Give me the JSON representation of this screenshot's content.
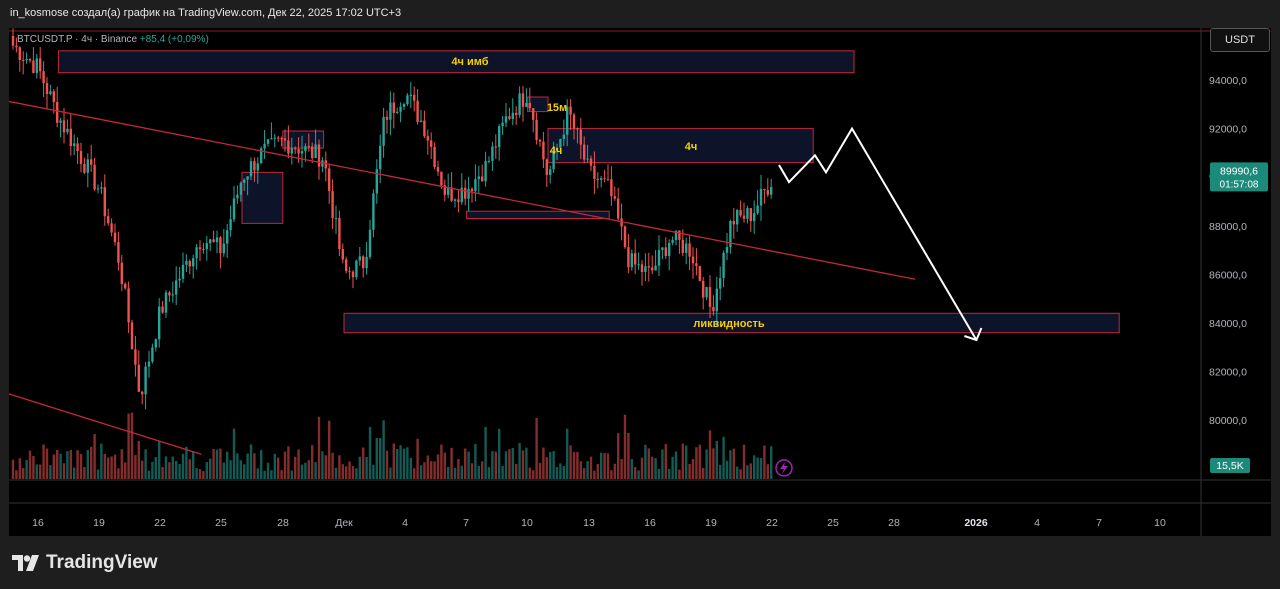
{
  "header": {
    "title": "in_kosmose создал(а) график на TradingView.com, Дек 22, 2025 17:02 UTC+3"
  },
  "symbol_bar": {
    "symbol": "BTCUSDT.P",
    "separator1": "·",
    "timeframe": "4ч",
    "separator2": "·",
    "exchange": "Binance",
    "change": "+85,4 (+0,09%)"
  },
  "currency_button": {
    "label": "USDT"
  },
  "price_scale": {
    "ticks": [
      "94000,0",
      "92000,0",
      "90000,0",
      "88000,0",
      "86000,0",
      "84000,0",
      "82000,0",
      "80000,0"
    ],
    "last_price": "89990,6",
    "countdown": "01:57:08",
    "volume_badge": "15,5K"
  },
  "time_axis": {
    "ticks": [
      "16",
      "19",
      "22",
      "25",
      "28",
      "Дек",
      "4",
      "7",
      "10",
      "13",
      "16",
      "19",
      "22",
      "25",
      "28",
      "2026",
      "4",
      "7",
      "10"
    ]
  },
  "annotations": {
    "imb_4h": "4ч имб",
    "m15": "15м",
    "h4_small": "4ч",
    "h4_zone": "4ч",
    "liquidity": "ликвидность"
  },
  "colors": {
    "up": "#26a69a",
    "down": "#ef5350",
    "zone_border": "#c2283a",
    "zone_fill": "#0d1328",
    "label_text": "#f5d000",
    "trendline": "#c2283a",
    "projection": "#ffffff",
    "price_badge": "#1b8a7a"
  },
  "footer": {
    "brand": "TradingView"
  },
  "chart_data": {
    "type": "candlestick",
    "symbol": "BTCUSDT.P",
    "timeframe": "4ч",
    "exchange": "Binance",
    "y_range": [
      78600,
      96000
    ],
    "last_price": 89990.6,
    "change_abs": 85.4,
    "change_pct": 0.09,
    "anchors": [
      {
        "date": "Nov 14",
        "close": 96000
      },
      {
        "date": "Nov 16",
        "close": 94500
      },
      {
        "date": "Nov 17",
        "close": 92500
      },
      {
        "date": "Nov 18",
        "close": 91000
      },
      {
        "date": "Nov 19",
        "close": 89500
      },
      {
        "date": "Nov 20",
        "close": 86500
      },
      {
        "date": "Nov 21",
        "close": 81000
      },
      {
        "date": "Nov 22",
        "close": 84500
      },
      {
        "date": "Nov 23",
        "close": 86000
      },
      {
        "date": "Nov 24",
        "close": 87500
      },
      {
        "date": "Nov 25",
        "close": 87000
      },
      {
        "date": "Nov 26",
        "close": 90000
      },
      {
        "date": "Nov 27",
        "close": 91000
      },
      {
        "date": "Nov 28",
        "close": 91500
      },
      {
        "date": "Nov 30",
        "close": 90800
      },
      {
        "date": "Dec 1",
        "close": 86000
      },
      {
        "date": "Dec 2",
        "close": 86500
      },
      {
        "date": "Dec 3",
        "close": 92500
      },
      {
        "date": "Dec 4",
        "close": 93500
      },
      {
        "date": "Dec 5",
        "close": 92000
      },
      {
        "date": "Dec 6",
        "close": 89300
      },
      {
        "date": "Dec 7",
        "close": 89500
      },
      {
        "date": "Dec 8",
        "close": 90500
      },
      {
        "date": "Dec 9",
        "close": 92500
      },
      {
        "date": "Dec 10",
        "close": 93500
      },
      {
        "date": "Dec 11",
        "close": 90000
      },
      {
        "date": "Dec 12",
        "close": 92700
      },
      {
        "date": "Dec 13",
        "close": 90200
      },
      {
        "date": "Dec 14",
        "close": 89500
      },
      {
        "date": "Dec 15",
        "close": 86500
      },
      {
        "date": "Dec 16",
        "close": 86000
      },
      {
        "date": "Dec 17",
        "close": 87500
      },
      {
        "date": "Dec 18",
        "close": 87000
      },
      {
        "date": "Dec 19",
        "close": 84500
      },
      {
        "date": "Dec 20",
        "close": 88200
      },
      {
        "date": "Dec 21",
        "close": 88500
      },
      {
        "date": "Dec 22",
        "close": 89990.6
      }
    ],
    "zones": [
      {
        "label": "4ч имб",
        "from": "Nov 17",
        "to": "Dec 26",
        "low": 94300,
        "high": 95200
      },
      {
        "label": "",
        "from": "Nov 26",
        "to": "Nov 28",
        "low": 88100,
        "high": 90200
      },
      {
        "label": "",
        "from": "Nov 28",
        "to": "Nov 30",
        "low": 91200,
        "high": 91900
      },
      {
        "label": "",
        "from": "Dec 7",
        "to": "Dec 14",
        "low": 88300,
        "high": 88600
      },
      {
        "label": "15м",
        "from": "Dec 10",
        "to": "Dec 11",
        "low": 92700,
        "high": 93300
      },
      {
        "label": "4ч",
        "from": "Dec 11",
        "to": "Dec 24",
        "low": 90600,
        "high": 92000
      },
      {
        "label": "ликвидность",
        "from": "Dec 1",
        "to": "Jan 8",
        "low": 83600,
        "high": 84400
      }
    ],
    "trendlines": [
      {
        "from": {
          "date": "Nov 8",
          "price": 94200
        },
        "to": {
          "date": "Dec 29",
          "price": 85800
        }
      },
      {
        "from": {
          "date": "Nov 5",
          "price": 83600
        },
        "to": {
          "date": "Nov 24",
          "price": 78600
        }
      }
    ],
    "projection": [
      {
        "date": "Dec 23",
        "price": 90500
      },
      {
        "date": "Dec 23",
        "price": 89800
      },
      {
        "date": "Dec 24",
        "price": 90900
      },
      {
        "date": "Dec 25",
        "price": 90200
      },
      {
        "date": "Dec 26",
        "price": 92000
      },
      {
        "date": "Jan 1",
        "price": 83300
      }
    ]
  }
}
